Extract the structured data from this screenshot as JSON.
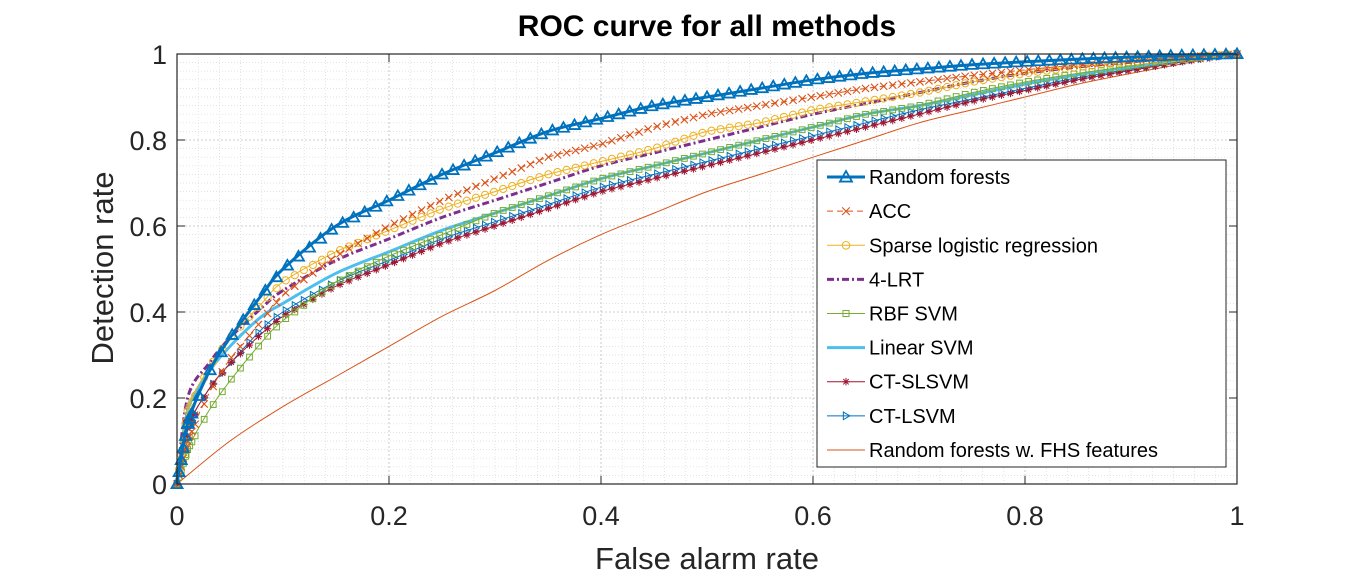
{
  "chart_data": {
    "type": "line",
    "title": "ROC curve for all methods",
    "xlabel": "False alarm rate",
    "ylabel": "Detection rate",
    "xlim": [
      0,
      1
    ],
    "ylim": [
      0,
      1
    ],
    "xticks": [
      0,
      0.2,
      0.4,
      0.6,
      0.8,
      1
    ],
    "yticks": [
      0,
      0.2,
      0.4,
      0.6,
      0.8,
      1
    ],
    "xtick_labels": [
      "0",
      "0.2",
      "0.4",
      "0.6",
      "0.8",
      "1"
    ],
    "ytick_labels": [
      "0",
      "0.2",
      "0.4",
      "0.6",
      "0.8",
      "1"
    ],
    "grid": true,
    "minor_grid": true,
    "legend_position": "right",
    "series": [
      {
        "name": "Random forests",
        "color": "#0072BD",
        "marker": "triangle",
        "line": "solid",
        "width": 3,
        "x": [
          0,
          0.01,
          0.03,
          0.05,
          0.08,
          0.1,
          0.15,
          0.2,
          0.25,
          0.3,
          0.35,
          0.4,
          0.45,
          0.5,
          0.55,
          0.6,
          0.65,
          0.7,
          0.75,
          0.8,
          0.85,
          0.9,
          0.95,
          1
        ],
        "y": [
          0,
          0.14,
          0.26,
          0.34,
          0.44,
          0.5,
          0.6,
          0.66,
          0.72,
          0.77,
          0.82,
          0.85,
          0.88,
          0.9,
          0.92,
          0.94,
          0.955,
          0.965,
          0.975,
          0.982,
          0.988,
          0.993,
          0.997,
          1.0
        ]
      },
      {
        "name": "ACC",
        "color": "#D95319",
        "marker": "x",
        "line": "dashed",
        "width": 1,
        "x": [
          0,
          0.01,
          0.03,
          0.05,
          0.08,
          0.1,
          0.15,
          0.2,
          0.25,
          0.3,
          0.35,
          0.4,
          0.45,
          0.5,
          0.55,
          0.6,
          0.65,
          0.7,
          0.75,
          0.8,
          0.85,
          0.9,
          0.95,
          1
        ],
        "y": [
          0,
          0.1,
          0.21,
          0.29,
          0.38,
          0.44,
          0.53,
          0.6,
          0.66,
          0.71,
          0.76,
          0.79,
          0.83,
          0.86,
          0.88,
          0.9,
          0.92,
          0.935,
          0.95,
          0.963,
          0.975,
          0.985,
          0.993,
          1.0
        ]
      },
      {
        "name": "Sparse logistic regression",
        "color": "#EDB120",
        "marker": "circle",
        "line": "solid",
        "width": 1,
        "x": [
          0,
          0.01,
          0.03,
          0.05,
          0.08,
          0.1,
          0.15,
          0.2,
          0.25,
          0.3,
          0.35,
          0.4,
          0.45,
          0.5,
          0.55,
          0.6,
          0.65,
          0.7,
          0.75,
          0.8,
          0.85,
          0.9,
          0.95,
          1
        ],
        "y": [
          0,
          0.17,
          0.27,
          0.34,
          0.42,
          0.47,
          0.54,
          0.59,
          0.64,
          0.68,
          0.72,
          0.75,
          0.78,
          0.82,
          0.84,
          0.87,
          0.89,
          0.91,
          0.935,
          0.955,
          0.97,
          0.982,
          0.992,
          1.0
        ]
      },
      {
        "name": "4-LRT",
        "color": "#7E2F8E",
        "marker": "none",
        "line": "dashdot",
        "width": 3,
        "x": [
          0,
          0.01,
          0.03,
          0.05,
          0.08,
          0.1,
          0.15,
          0.2,
          0.25,
          0.3,
          0.35,
          0.4,
          0.45,
          0.5,
          0.55,
          0.6,
          0.65,
          0.7,
          0.75,
          0.8,
          0.85,
          0.9,
          0.95,
          1
        ],
        "y": [
          0,
          0.2,
          0.28,
          0.34,
          0.41,
          0.45,
          0.52,
          0.57,
          0.62,
          0.66,
          0.7,
          0.74,
          0.77,
          0.8,
          0.83,
          0.86,
          0.885,
          0.91,
          0.935,
          0.955,
          0.97,
          0.982,
          0.992,
          1.0
        ]
      },
      {
        "name": "RBF SVM",
        "color": "#77AC30",
        "marker": "square",
        "line": "solid",
        "width": 1,
        "x": [
          0,
          0.01,
          0.03,
          0.05,
          0.08,
          0.1,
          0.15,
          0.2,
          0.25,
          0.3,
          0.35,
          0.4,
          0.45,
          0.5,
          0.55,
          0.6,
          0.65,
          0.7,
          0.75,
          0.8,
          0.85,
          0.9,
          0.95,
          1
        ],
        "y": [
          0,
          0.08,
          0.17,
          0.24,
          0.33,
          0.38,
          0.47,
          0.53,
          0.58,
          0.63,
          0.67,
          0.71,
          0.74,
          0.77,
          0.8,
          0.83,
          0.86,
          0.88,
          0.91,
          0.935,
          0.955,
          0.972,
          0.988,
          1.0
        ]
      },
      {
        "name": "Linear SVM",
        "color": "#4DBEEE",
        "marker": "none",
        "line": "solid",
        "width": 3,
        "x": [
          0,
          0.01,
          0.03,
          0.05,
          0.08,
          0.1,
          0.15,
          0.2,
          0.25,
          0.3,
          0.35,
          0.4,
          0.45,
          0.5,
          0.55,
          0.6,
          0.65,
          0.7,
          0.75,
          0.8,
          0.85,
          0.9,
          0.95,
          1
        ],
        "y": [
          0,
          0.17,
          0.26,
          0.32,
          0.39,
          0.42,
          0.49,
          0.54,
          0.59,
          0.63,
          0.67,
          0.71,
          0.74,
          0.77,
          0.8,
          0.83,
          0.86,
          0.88,
          0.905,
          0.93,
          0.952,
          0.97,
          0.987,
          1.0
        ]
      },
      {
        "name": "CT-SLSVM",
        "color": "#A2142F",
        "marker": "star",
        "line": "solid",
        "width": 1,
        "x": [
          0,
          0.01,
          0.03,
          0.05,
          0.08,
          0.1,
          0.15,
          0.2,
          0.25,
          0.3,
          0.35,
          0.4,
          0.45,
          0.5,
          0.55,
          0.6,
          0.65,
          0.7,
          0.75,
          0.8,
          0.85,
          0.9,
          0.95,
          1
        ],
        "y": [
          0,
          0.13,
          0.22,
          0.28,
          0.35,
          0.39,
          0.46,
          0.51,
          0.56,
          0.6,
          0.64,
          0.68,
          0.71,
          0.74,
          0.77,
          0.8,
          0.83,
          0.86,
          0.89,
          0.915,
          0.94,
          0.962,
          0.982,
          1.0
        ]
      },
      {
        "name": "CT-LSVM",
        "color": "#0072BD",
        "marker": "triangle-right",
        "line": "solid",
        "width": 1,
        "x": [
          0,
          0.01,
          0.03,
          0.05,
          0.08,
          0.1,
          0.15,
          0.2,
          0.25,
          0.3,
          0.35,
          0.4,
          0.45,
          0.5,
          0.55,
          0.6,
          0.65,
          0.7,
          0.75,
          0.8,
          0.85,
          0.9,
          0.95,
          1
        ],
        "y": [
          0,
          0.13,
          0.22,
          0.28,
          0.36,
          0.4,
          0.47,
          0.52,
          0.57,
          0.61,
          0.65,
          0.69,
          0.72,
          0.75,
          0.78,
          0.81,
          0.84,
          0.87,
          0.895,
          0.92,
          0.945,
          0.965,
          0.984,
          1.0
        ]
      },
      {
        "name": "Random forests w. FHS features",
        "color": "#D95319",
        "marker": "none",
        "line": "solid",
        "width": 1,
        "x": [
          0,
          0.05,
          0.1,
          0.15,
          0.2,
          0.25,
          0.3,
          0.35,
          0.4,
          0.45,
          0.5,
          0.55,
          0.6,
          0.65,
          0.7,
          0.75,
          0.8,
          0.85,
          0.9,
          0.95,
          1
        ],
        "y": [
          0,
          0.1,
          0.18,
          0.25,
          0.32,
          0.39,
          0.45,
          0.52,
          0.58,
          0.63,
          0.68,
          0.72,
          0.76,
          0.8,
          0.84,
          0.87,
          0.9,
          0.93,
          0.955,
          0.978,
          1.0
        ]
      }
    ]
  }
}
